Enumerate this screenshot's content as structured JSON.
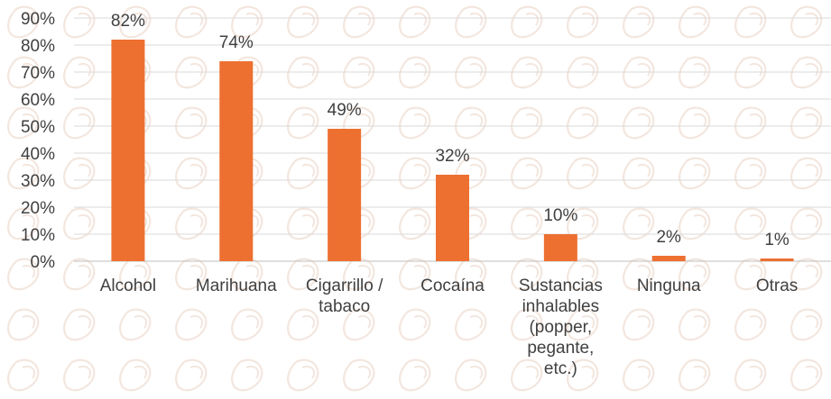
{
  "chart_data": {
    "type": "bar",
    "categories": [
      [
        "Alcohol"
      ],
      [
        "Marihuana"
      ],
      [
        "Cigarrillo /",
        "tabaco"
      ],
      [
        "Cocaína"
      ],
      [
        "Sustancias",
        "inhalables",
        "(popper,",
        "pegante,",
        "etc.)"
      ],
      [
        "Ninguna"
      ],
      [
        "Otras"
      ]
    ],
    "values": [
      82,
      74,
      49,
      32,
      10,
      2,
      1
    ],
    "data_labels": [
      "82%",
      "74%",
      "49%",
      "32%",
      "10%",
      "2%",
      "1%"
    ],
    "y_ticks": [
      "0%",
      "10%",
      "20%",
      "30%",
      "40%",
      "50%",
      "60%",
      "70%",
      "80%",
      "90%"
    ],
    "ylim": [
      0,
      90
    ],
    "grid": true,
    "bar_color": "#ED7031",
    "grid_color": "#D9D9D9",
    "text_color": "#404040"
  }
}
